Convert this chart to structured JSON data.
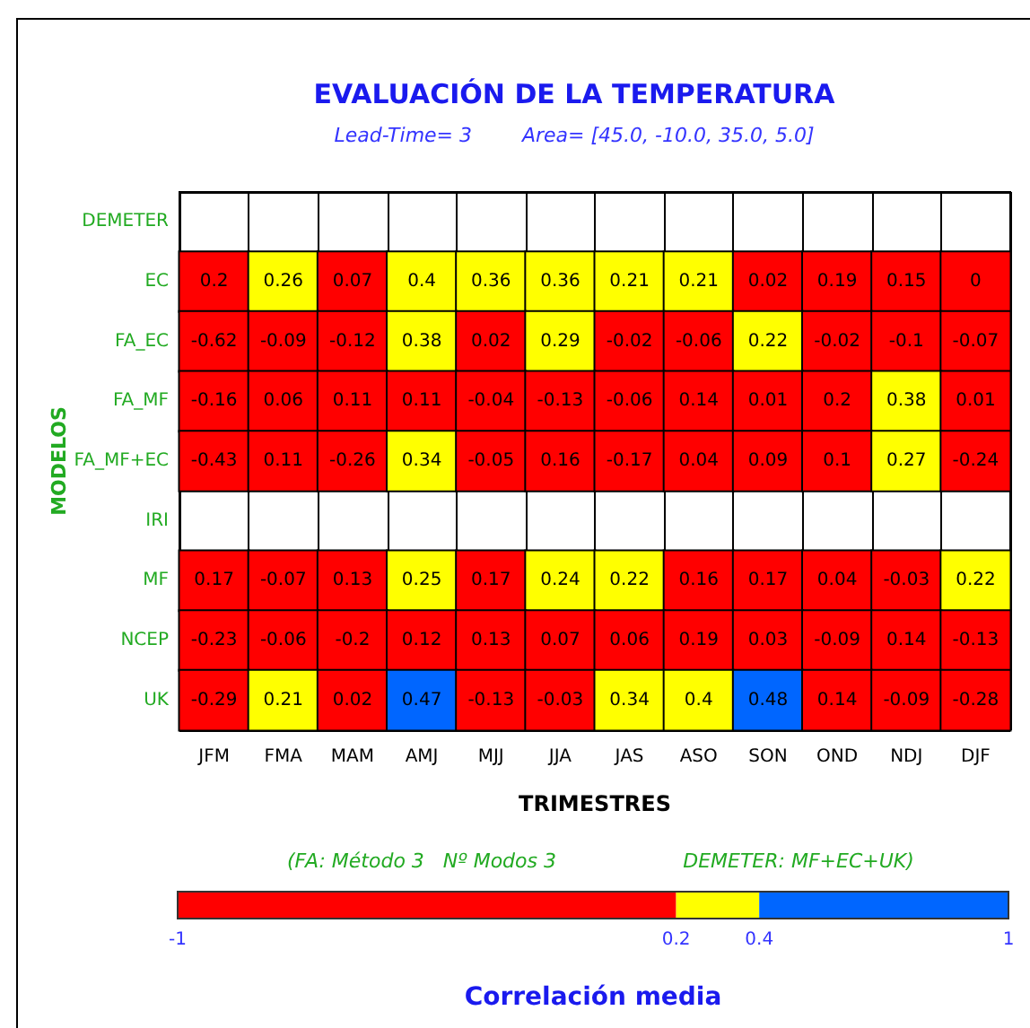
{
  "chart_data": {
    "type": "heatmap",
    "title": "EVALUACIÓN DE LA TEMPERATURA",
    "subtitle": "Lead-Time= 3        Area= [45.0, -10.0, 35.0, 5.0]",
    "xlabel": "TRIMESTRES",
    "ylabel": "MODELOS",
    "clabel": "Correlación media",
    "annotations": [
      "(FA: Método 3   Nº Modos 3",
      "DEMETER: MF+EC+UK)"
    ],
    "categories": [
      "JFM",
      "FMA",
      "MAM",
      "AMJ",
      "MJJ",
      "JJA",
      "JAS",
      "ASO",
      "SON",
      "OND",
      "NDJ",
      "DJF"
    ],
    "y_categories": [
      "DEMETER",
      "EC",
      "FA_EC",
      "FA_MF",
      "FA_MF+EC",
      "IRI",
      "MF",
      "NCEP",
      "UK"
    ],
    "cells": [
      [
        null,
        null,
        null,
        null,
        null,
        null,
        null,
        null,
        null,
        null,
        null,
        null
      ],
      [
        0.2,
        0.26,
        0.07,
        0.4,
        0.36,
        0.36,
        0.21,
        0.21,
        0.02,
        0.19,
        0.15,
        0
      ],
      [
        -0.62,
        -0.09,
        -0.12,
        0.38,
        0.02,
        0.29,
        -0.02,
        -0.06,
        0.22,
        -0.02,
        -0.1,
        -0.07
      ],
      [
        -0.16,
        0.06,
        0.11,
        0.11,
        -0.04,
        -0.13,
        -0.06,
        0.14,
        0.01,
        0.2,
        0.38,
        0.01
      ],
      [
        -0.43,
        0.11,
        -0.26,
        0.34,
        -0.05,
        0.16,
        -0.17,
        0.04,
        0.09,
        0.1,
        0.27,
        -0.24
      ],
      [
        null,
        null,
        null,
        null,
        null,
        null,
        null,
        null,
        null,
        null,
        null,
        null
      ],
      [
        0.17,
        -0.07,
        0.13,
        0.25,
        0.17,
        0.24,
        0.22,
        0.16,
        0.17,
        0.04,
        -0.03,
        0.22
      ],
      [
        -0.23,
        -0.06,
        -0.2,
        0.12,
        0.13,
        0.07,
        0.06,
        0.19,
        0.03,
        -0.09,
        0.14,
        -0.13
      ],
      [
        -0.29,
        0.21,
        0.02,
        0.47,
        -0.13,
        -0.03,
        0.34,
        0.4,
        0.48,
        0.14,
        -0.09,
        -0.28
      ]
    ],
    "clim": [
      -1,
      1
    ],
    "cticks": [
      -1,
      0.2,
      0.4,
      1
    ],
    "colors": [
      "#ff0000",
      "#ffff00",
      "#0066ff"
    ],
    "data_labels": true,
    "grid": true
  }
}
